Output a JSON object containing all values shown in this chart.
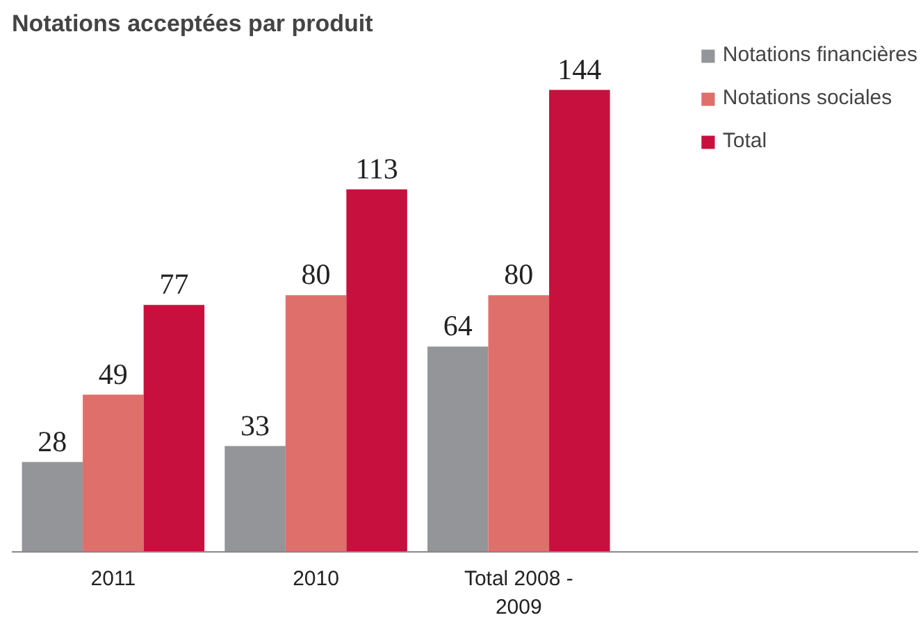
{
  "chart_data": {
    "type": "bar",
    "title": "Notations acceptées par produit",
    "categories": [
      "2011",
      "2010",
      "Total 2008 - 2009"
    ],
    "series": [
      {
        "name": "Notations financières",
        "color": "#939598",
        "values": [
          28,
          33,
          64
        ]
      },
      {
        "name": "Notations sociales",
        "color": "#df6f6b",
        "values": [
          49,
          80,
          80
        ]
      },
      {
        "name": "Total",
        "color": "#c8103e",
        "values": [
          77,
          113,
          144
        ]
      }
    ],
    "data_labels": true,
    "legend": "right",
    "grid": false
  }
}
